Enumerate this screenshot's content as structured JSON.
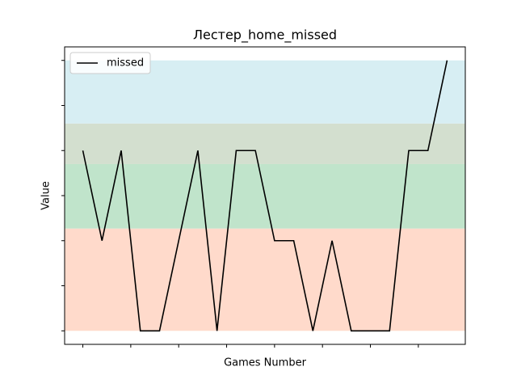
{
  "chart_data": {
    "type": "line",
    "title": "Лестер_home_missed",
    "xlabel": "Games Number",
    "ylabel": "Value",
    "x": [
      0,
      1,
      2,
      3,
      4,
      5,
      6,
      7,
      8,
      9,
      10,
      11,
      12,
      13,
      14,
      15,
      16,
      17,
      18,
      19
    ],
    "series": [
      {
        "name": "missed",
        "color": "#000000",
        "values": [
          4,
          2,
          4,
          0,
          0,
          2,
          4,
          0,
          4,
          4,
          2,
          2,
          0,
          2,
          0,
          0,
          0,
          4,
          4,
          6
        ]
      }
    ],
    "xlim": [
      -0.95,
      19.95
    ],
    "xticks": [
      0,
      2.5,
      5,
      7.5,
      10,
      12.5,
      15,
      17.5
    ],
    "ylim": [
      -0.3,
      6.3
    ],
    "yticks": [
      0,
      1,
      2,
      3,
      4,
      5,
      6
    ],
    "bands": [
      {
        "from": 0,
        "to": 2.27,
        "color": "#ffdacb"
      },
      {
        "from": 2.27,
        "to": 3.7,
        "color": "#c0e4cb"
      },
      {
        "from": 3.7,
        "to": 4.6,
        "color": "#d3dfcf"
      },
      {
        "from": 4.6,
        "to": 6,
        "color": "#d7eef3"
      }
    ],
    "legend": "upper left"
  }
}
